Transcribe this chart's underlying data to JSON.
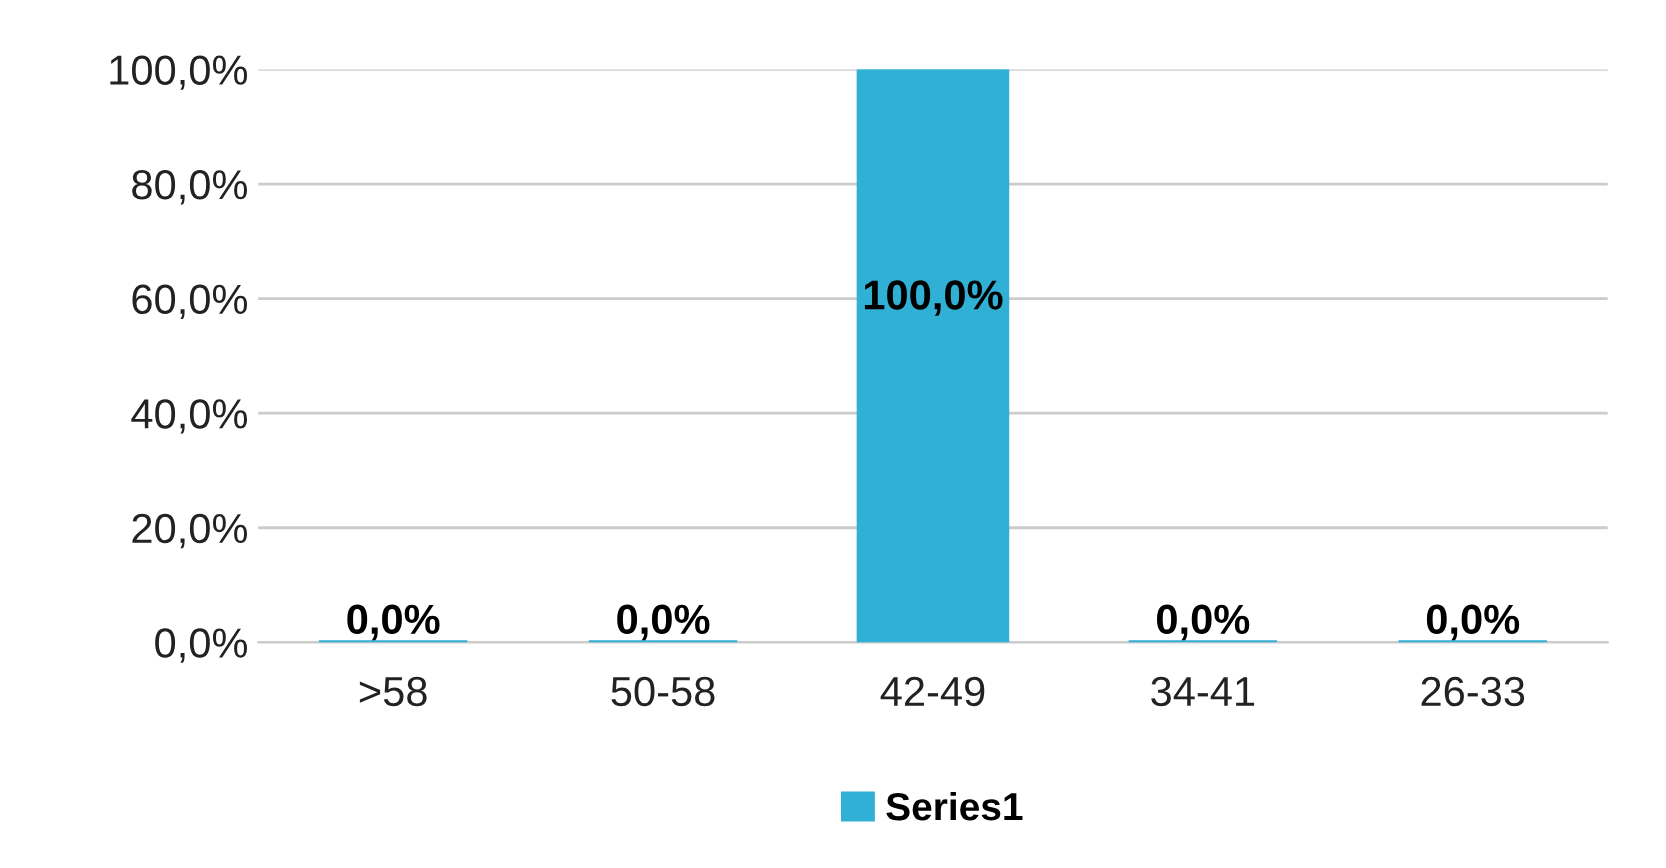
{
  "chart_data": {
    "type": "bar",
    "categories": [
      ">58",
      "50-58",
      "42-49",
      "34-41",
      "26-33"
    ],
    "series": [
      {
        "name": "Series1",
        "color": "#31b0d5",
        "values": [
          0,
          0,
          100,
          0,
          0
        ],
        "value_labels": [
          "0,0%",
          "0,0%",
          "100,0%",
          "0,0%",
          "0,0%"
        ]
      }
    ],
    "ylim": [
      0,
      100
    ],
    "yticks": [
      {
        "value": 0,
        "label": "0,0%"
      },
      {
        "value": 20,
        "label": "20,0%"
      },
      {
        "value": 40,
        "label": "40,0%"
      },
      {
        "value": 60,
        "label": "60,0%"
      },
      {
        "value": 80,
        "label": "80,0%"
      },
      {
        "value": 100,
        "label": "100,0%"
      }
    ],
    "grid": "y",
    "legend": "bottom"
  }
}
